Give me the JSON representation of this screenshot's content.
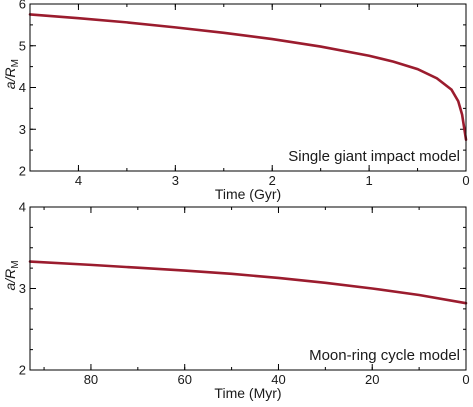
{
  "colors": {
    "series": "#9b1c2e",
    "axis": "#000000",
    "text": "#1a1a1a"
  },
  "chart_data": [
    {
      "type": "line",
      "title": "",
      "annotation": "Single giant impact model",
      "xlabel": "Time (Gyr)",
      "ylabel_main": "a/R",
      "ylabel_sub": "M",
      "xlim": [
        4.5,
        0
      ],
      "ylim": [
        2,
        6
      ],
      "xticks": [
        {
          "value": 4,
          "label": "4"
        },
        {
          "value": 3,
          "label": "3"
        },
        {
          "value": 2,
          "label": "2"
        },
        {
          "value": 1,
          "label": "1"
        },
        {
          "value": 0,
          "label": "0"
        }
      ],
      "yticks": [
        {
          "value": 2,
          "label": "2"
        },
        {
          "value": 3,
          "label": "3"
        },
        {
          "value": 4,
          "label": "4"
        },
        {
          "value": 5,
          "label": "5"
        },
        {
          "value": 6,
          "label": "6"
        }
      ],
      "x_minor_step": 0.5,
      "y_minor_step": 0.5,
      "grid": false,
      "series": [
        {
          "x": [
            4.5,
            4.0,
            3.5,
            3.0,
            2.5,
            2.0,
            1.5,
            1.0,
            0.75,
            0.5,
            0.3,
            0.15,
            0.08,
            0.04,
            0.0
          ],
          "y": [
            5.75,
            5.66,
            5.56,
            5.44,
            5.31,
            5.16,
            4.98,
            4.76,
            4.62,
            4.44,
            4.22,
            3.95,
            3.67,
            3.35,
            2.75
          ]
        }
      ]
    },
    {
      "type": "line",
      "title": "",
      "annotation": "Moon-ring cycle model",
      "xlabel": "Time (Myr)",
      "ylabel_main": "a/R",
      "ylabel_sub": "M",
      "xlim": [
        93,
        0
      ],
      "ylim": [
        2,
        4
      ],
      "xticks": [
        {
          "value": 80,
          "label": "80"
        },
        {
          "value": 60,
          "label": "60"
        },
        {
          "value": 40,
          "label": "40"
        },
        {
          "value": 20,
          "label": "20"
        },
        {
          "value": 0,
          "label": "0"
        }
      ],
      "yticks": [
        {
          "value": 2,
          "label": "2"
        },
        {
          "value": 3,
          "label": "3"
        },
        {
          "value": 4,
          "label": "4"
        }
      ],
      "x_minor_step": 10,
      "y_minor_step": 0.25,
      "grid": false,
      "series": [
        {
          "x": [
            93,
            80,
            70,
            60,
            50,
            40,
            30,
            20,
            10,
            0
          ],
          "y": [
            3.33,
            3.29,
            3.255,
            3.22,
            3.18,
            3.13,
            3.07,
            3.0,
            2.92,
            2.82
          ]
        }
      ]
    }
  ]
}
